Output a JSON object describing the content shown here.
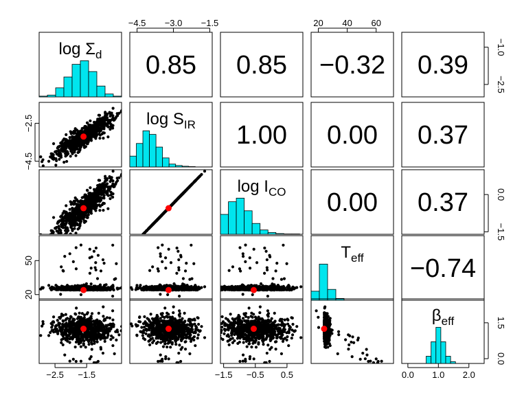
{
  "chart_data": {
    "type": "scatter",
    "variables": [
      {
        "label": "log Σ",
        "sub": "d"
      },
      {
        "label": "log S",
        "sub": "IR"
      },
      {
        "label": "log I",
        "sub": "CO"
      },
      {
        "label": "T",
        "sub": "eff"
      },
      {
        "label": "β",
        "sub": "eff"
      }
    ],
    "ranges": [
      [
        -3.0,
        -0.4
      ],
      [
        -4.8,
        -1.4
      ],
      [
        -1.6,
        1.0
      ],
      [
        15,
        72
      ],
      [
        -0.2,
        2.5
      ]
    ],
    "correlations": [
      [
        null,
        "0.85",
        "0.85",
        "−0.32",
        "0.39"
      ],
      [
        null,
        null,
        "1.00",
        "0.00",
        "0.37"
      ],
      [
        null,
        null,
        null,
        "0.00",
        "0.37"
      ],
      [
        null,
        null,
        null,
        null,
        "−0.74"
      ]
    ],
    "ticks": {
      "top": [
        {
          "panel": 1,
          "labels": [
            "−4.5",
            "−3.0",
            "−1.5"
          ],
          "values": [
            -4.5,
            -3.0,
            -1.5
          ]
        },
        {
          "panel": 3,
          "labels": [
            "20",
            "40",
            "60"
          ],
          "values": [
            20,
            40,
            60
          ]
        }
      ],
      "bottom": [
        {
          "panel": 0,
          "labels": [
            "−2.5",
            "−1.5"
          ],
          "values": [
            -2.5,
            -1.5
          ]
        },
        {
          "panel": 2,
          "labels": [
            "−1.5",
            "−0.5",
            "0.5"
          ],
          "values": [
            -1.5,
            -0.5,
            0.5
          ]
        },
        {
          "panel": 4,
          "labels": [
            "0.0",
            "1.0",
            "2.0"
          ],
          "values": [
            0.0,
            1.0,
            2.0
          ]
        }
      ],
      "left": [
        {
          "panel": 1,
          "labels": [
            "−2.5",
            "−4.5"
          ],
          "values": [
            -2.5,
            -4.5
          ]
        },
        {
          "panel": 3,
          "labels": [
            "50",
            "20"
          ],
          "values": [
            50,
            20
          ]
        }
      ],
      "right": [
        {
          "panel": 0,
          "labels": [
            "−1.0",
            "−2.5"
          ],
          "values": [
            -1.0,
            -2.5
          ]
        },
        {
          "panel": 2,
          "labels": [
            "0.0",
            "−1.5"
          ],
          "values": [
            0.0,
            -1.5
          ]
        },
        {
          "panel": 4,
          "labels": [
            "1.5",
            "0.0"
          ],
          "values": [
            1.5,
            0.0
          ]
        }
      ]
    },
    "histograms": [
      [
        0.02,
        0.05,
        0.25,
        0.55,
        0.9,
        1.0,
        0.7,
        0.3,
        0.08,
        0.02
      ],
      [
        0.3,
        0.65,
        1.0,
        0.9,
        0.55,
        0.25,
        0.08,
        0.04,
        0.02,
        0.01
      ],
      [
        0.55,
        0.9,
        1.0,
        0.65,
        0.3,
        0.12,
        0.05,
        0.02,
        0.01,
        0.01
      ],
      [
        0.25,
        1.0,
        0.3,
        0.05,
        0.0,
        0.0,
        0.0,
        0.0,
        0.0,
        0.0
      ],
      [
        0.2,
        0.6,
        1.0,
        0.6,
        0.2,
        0.05,
        0.0,
        0.0,
        0.0,
        0.0
      ]
    ],
    "histogram_bins": [
      [
        -3.0,
        -0.4
      ],
      [
        -4.8,
        -2.1
      ],
      [
        -1.6,
        0.9
      ],
      [
        15,
        72
      ],
      [
        0.6,
        2.2
      ]
    ],
    "best_fit": {
      "log_sigma_d": -1.6,
      "log_s_ir": -3.2,
      "log_i_co": -0.55,
      "t_eff": 24,
      "beta_eff": 1.25
    },
    "colors": {
      "hist_fill": "#00e5ee",
      "best_fit": "#ff0000",
      "points": "#000000"
    }
  }
}
